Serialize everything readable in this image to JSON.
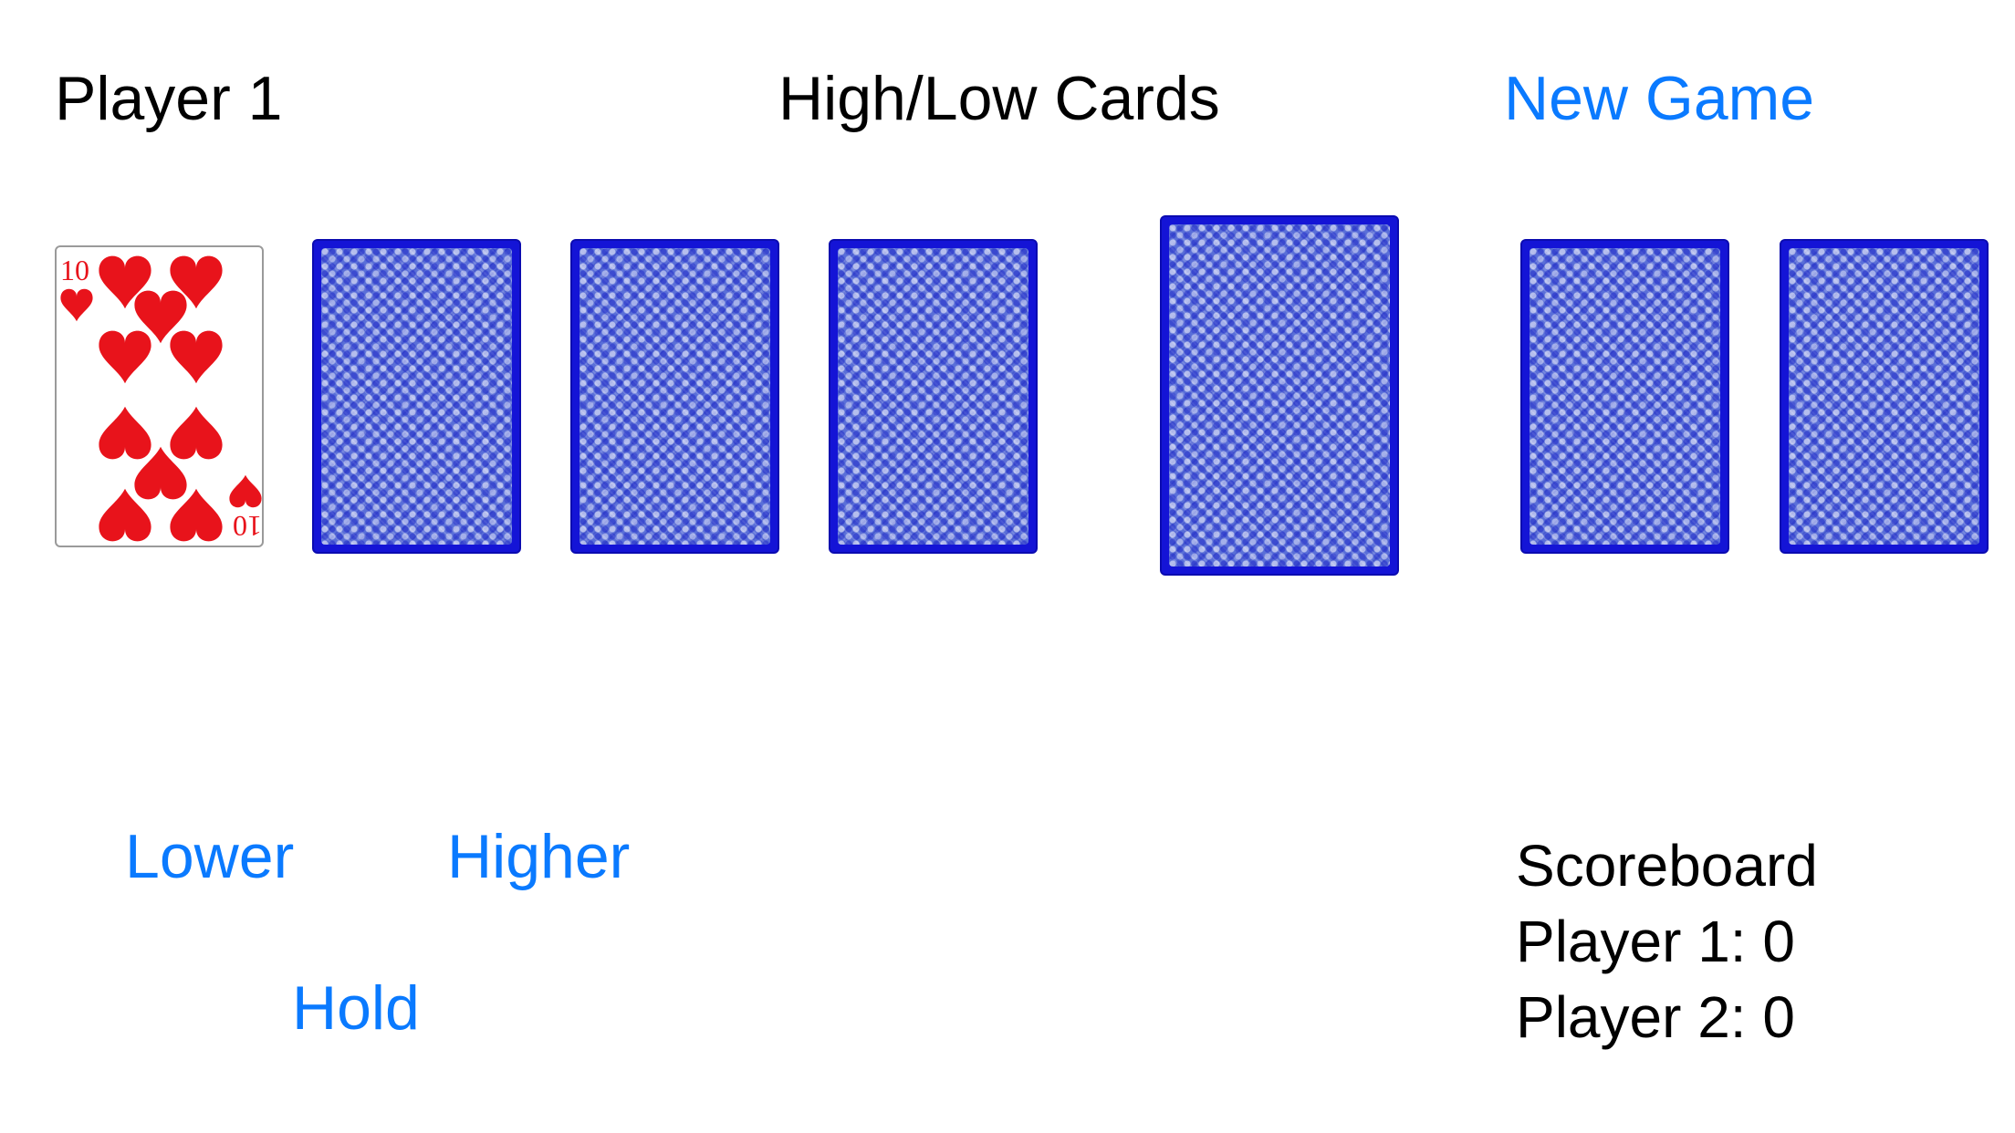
{
  "header": {
    "player_label": "Player 1",
    "title": "High/Low Cards",
    "new_game_label": "New Game"
  },
  "cards": {
    "player_row": [
      {
        "face_up": true,
        "rank": "10",
        "suit": "hearts",
        "suit_icon": "heart-icon"
      },
      {
        "face_up": false
      },
      {
        "face_up": false
      },
      {
        "face_up": false
      }
    ],
    "deck": {
      "face_up": false
    },
    "opponent_row": [
      {
        "face_up": false
      },
      {
        "face_up": false
      }
    ]
  },
  "controls": {
    "lower_label": "Lower",
    "higher_label": "Higher",
    "hold_label": "Hold"
  },
  "scoreboard": {
    "title": "Scoreboard",
    "player1": "Player 1: 0",
    "player2": "Player 2: 0"
  },
  "colors": {
    "accent": "#0a7aff",
    "card_back": "#1414d6",
    "heart": "#e8131b"
  }
}
